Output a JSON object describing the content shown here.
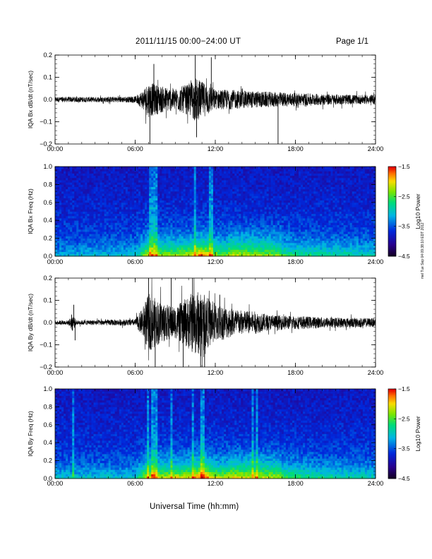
{
  "header": {
    "title": "2011/11/15   00:00−24:00 UT",
    "page": "Page 1/1"
  },
  "footer": {
    "xaxis_label": "Universal Time (hh:mm)",
    "side_stamp": "mel Tue Sep 04 09:38:10 EDT 2012"
  },
  "chart_data": [
    {
      "type": "line",
      "panel": "IQA Bx dB/dt",
      "ylabel": "IQA Bx dB/dt (nT/sec)",
      "ylim": [
        -0.2,
        0.2
      ],
      "yticks": [
        -0.2,
        -0.1,
        0.0,
        0.1,
        0.2
      ],
      "ytick_labels": [
        "−0.2",
        "−0.1",
        "0.0",
        "0.1",
        "0.2"
      ],
      "xlim_hours": [
        0,
        24
      ],
      "xticks": [
        "00:00",
        "06:00",
        "12:00",
        "18:00",
        "24:00"
      ],
      "envelope_hours": [
        0,
        3,
        6,
        6.5,
        7,
        8,
        9,
        10,
        10.5,
        11,
        11.5,
        12,
        13,
        14,
        16,
        18,
        20,
        22,
        24
      ],
      "envelope_amplitude": [
        0.012,
        0.012,
        0.014,
        0.04,
        0.08,
        0.06,
        0.05,
        0.07,
        0.1,
        0.08,
        0.07,
        0.045,
        0.045,
        0.04,
        0.035,
        0.03,
        0.025,
        0.022,
        0.02
      ],
      "spikes": [
        {
          "hour": 7.1,
          "value": -0.2
        },
        {
          "hour": 7.4,
          "value": 0.16
        },
        {
          "hour": 10.5,
          "value": 0.2
        },
        {
          "hour": 10.6,
          "value": -0.17
        },
        {
          "hour": 11.7,
          "value": 0.19
        },
        {
          "hour": 16.7,
          "value": -0.2
        }
      ]
    },
    {
      "type": "heatmap",
      "panel": "IQA Bx spectrogram",
      "ylabel": "IQA Bx Freq (Hz)",
      "ylim": [
        0.0,
        1.0
      ],
      "yticks": [
        0.0,
        0.2,
        0.4,
        0.6,
        0.8,
        1.0
      ],
      "ytick_labels": [
        "0.0",
        "0.2",
        "0.4",
        "0.6",
        "0.8",
        "1.0"
      ],
      "xlim_hours": [
        0,
        24
      ],
      "xticks": [
        "00:00",
        "06:00",
        "12:00",
        "18:00",
        "24:00"
      ],
      "colorbar": {
        "label": "Log10 Power",
        "range": [
          -4.5,
          -1.5
        ],
        "ticks": [
          "−1.5",
          "−2.5",
          "−3.5",
          "−4.5"
        ]
      },
      "activity_hours": [
        0,
        6,
        7,
        8,
        10,
        11,
        12,
        14,
        16,
        20,
        24
      ],
      "activity_level": [
        0.2,
        0.25,
        0.65,
        0.55,
        0.6,
        0.8,
        0.55,
        0.5,
        0.45,
        0.35,
        0.3
      ],
      "vertical_streaks_hours": [
        7.1,
        7.3,
        7.5,
        10.5,
        11.7
      ]
    },
    {
      "type": "line",
      "panel": "IQA By dB/dt",
      "ylabel": "IQA By dB/dt (nT/sec)",
      "ylim": [
        -0.2,
        0.2
      ],
      "yticks": [
        -0.2,
        -0.1,
        0.0,
        0.1,
        0.2
      ],
      "ytick_labels": [
        "−0.2",
        "−0.1",
        "0.0",
        "0.1",
        "0.2"
      ],
      "xlim_hours": [
        0,
        24
      ],
      "xticks": [
        "00:00",
        "06:00",
        "12:00",
        "18:00",
        "24:00"
      ],
      "envelope_hours": [
        0,
        1,
        1.3,
        1.6,
        3,
        6,
        6.5,
        7,
        8,
        9,
        10,
        10.5,
        11,
        12,
        13,
        14,
        15,
        16,
        18,
        20,
        22,
        24
      ],
      "envelope_amplitude": [
        0.01,
        0.01,
        0.04,
        0.01,
        0.012,
        0.015,
        0.06,
        0.13,
        0.09,
        0.07,
        0.12,
        0.15,
        0.13,
        0.09,
        0.07,
        0.055,
        0.05,
        0.035,
        0.03,
        0.025,
        0.022,
        0.02
      ],
      "spikes": [
        {
          "hour": 1.4,
          "value": 0.08
        },
        {
          "hour": 1.5,
          "value": -0.08
        },
        {
          "hour": 7.0,
          "value": 0.2
        },
        {
          "hour": 7.5,
          "value": -0.2
        },
        {
          "hour": 8.7,
          "value": 0.2
        },
        {
          "hour": 9.6,
          "value": -0.2
        },
        {
          "hour": 10.3,
          "value": 0.2
        },
        {
          "hour": 10.9,
          "value": -0.2
        },
        {
          "hour": 11.2,
          "value": -0.2
        }
      ]
    },
    {
      "type": "heatmap",
      "panel": "IQA By spectrogram",
      "ylabel": "IQA By Freq (Hz)",
      "ylim": [
        0.0,
        1.0
      ],
      "yticks": [
        0.0,
        0.2,
        0.4,
        0.6,
        0.8,
        1.0
      ],
      "ytick_labels": [
        "0.0",
        "0.2",
        "0.4",
        "0.6",
        "0.8",
        "1.0"
      ],
      "xlim_hours": [
        0,
        24
      ],
      "xticks": [
        "00:00",
        "06:00",
        "12:00",
        "18:00",
        "24:00"
      ],
      "colorbar": {
        "label": "Log10 Power",
        "range": [
          -4.5,
          -1.5
        ],
        "ticks": [
          "−1.5",
          "−2.5",
          "−3.5",
          "−4.5"
        ]
      },
      "activity_hours": [
        0,
        6,
        7,
        8,
        10,
        11,
        12,
        14,
        16,
        20,
        24
      ],
      "activity_level": [
        0.25,
        0.25,
        0.7,
        0.6,
        0.65,
        0.85,
        0.6,
        0.55,
        0.5,
        0.35,
        0.3
      ],
      "vertical_streaks_hours": [
        1.4,
        7.0,
        7.3,
        7.5,
        8.7,
        10.3,
        11.0,
        14.8,
        15.1
      ]
    }
  ]
}
